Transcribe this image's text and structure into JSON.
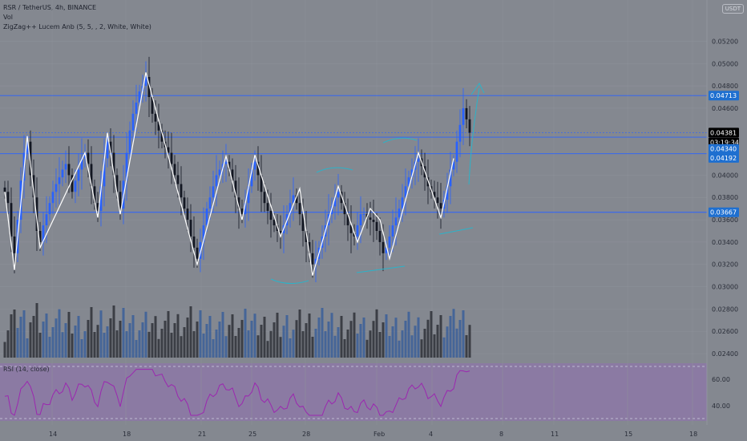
{
  "header": {
    "symbol_line": "RSR / TetherUS, 4h, BINANCE",
    "vol_label": "Vol",
    "indicator_line": "ZigZag++ Lucem Anb (5, 5, , 2, White, White)",
    "currency_badge": "USDT"
  },
  "colors": {
    "background": "#848890",
    "rsi_band": "#8b7aa3",
    "rsi_line": "#9c27b0",
    "bull": "#2962ff",
    "bear": "#131722",
    "level": "#2962ff",
    "zigzag": "#ffffff",
    "grid": "#8e929a",
    "price_label_bg": "#1e6fd0",
    "current_bg": "#000000",
    "projection": "#2bb3c9"
  },
  "price_axis": {
    "ticks": [
      "0.05200",
      "0.05000",
      "0.04800",
      "0.04600",
      "0.04000",
      "0.03800",
      "0.03600",
      "0.03400",
      "0.03200",
      "0.03000",
      "0.02800",
      "0.02600",
      "0.02400"
    ],
    "labels": [
      {
        "text": "0.04713",
        "value": 0.04713,
        "style": "level"
      },
      {
        "text": "0.04381",
        "value": 0.04381,
        "style": "current"
      },
      {
        "text": "03:19:34",
        "value": 0.04293,
        "style": "countdown"
      },
      {
        "text": "0.04340",
        "value": 0.04235,
        "style": "level"
      },
      {
        "text": "0.04192",
        "value": 0.04155,
        "style": "level"
      },
      {
        "text": "0.03667",
        "value": 0.03667,
        "style": "level"
      }
    ]
  },
  "rsi_panel": {
    "label": "RSI (14, close)",
    "ticks": [
      "60.00",
      "40.00"
    ]
  },
  "time_axis": {
    "ticks": [
      "14",
      "18",
      "21",
      "25",
      "28",
      "Feb",
      "4",
      "8",
      "11",
      "15",
      "18"
    ]
  },
  "chart_data": {
    "type": "candlestick",
    "symbol": "RSR / TetherUS",
    "interval": "4h",
    "exchange": "BINANCE",
    "price_range": [
      0.0235,
      0.0539
    ],
    "horizontal_levels": [
      0.04713,
      0.04381,
      0.0434,
      0.04192,
      0.03667
    ],
    "zigzag_pivots": [
      {
        "i": 0,
        "p": 0.0385
      },
      {
        "i": 3,
        "p": 0.0315
      },
      {
        "i": 7,
        "p": 0.0435
      },
      {
        "i": 11,
        "p": 0.0335
      },
      {
        "i": 25,
        "p": 0.042
      },
      {
        "i": 29,
        "p": 0.0362
      },
      {
        "i": 32,
        "p": 0.0438
      },
      {
        "i": 36,
        "p": 0.0365
      },
      {
        "i": 44,
        "p": 0.0492
      },
      {
        "i": 60,
        "p": 0.032
      },
      {
        "i": 69,
        "p": 0.0417
      },
      {
        "i": 74,
        "p": 0.036
      },
      {
        "i": 78,
        "p": 0.0418
      },
      {
        "i": 86,
        "p": 0.0345
      },
      {
        "i": 92,
        "p": 0.0388
      },
      {
        "i": 96,
        "p": 0.031
      },
      {
        "i": 104,
        "p": 0.039
      },
      {
        "i": 110,
        "p": 0.034
      },
      {
        "i": 114,
        "p": 0.037
      },
      {
        "i": 117,
        "p": 0.036
      },
      {
        "i": 120,
        "p": 0.0325
      },
      {
        "i": 129,
        "p": 0.042
      },
      {
        "i": 136,
        "p": 0.0362
      },
      {
        "i": 140,
        "p": 0.0415
      }
    ],
    "close_path": [
      0.0385,
      0.0375,
      0.0345,
      0.033,
      0.036,
      0.0395,
      0.042,
      0.043,
      0.04,
      0.038,
      0.035,
      0.034,
      0.0355,
      0.0365,
      0.0375,
      0.0385,
      0.0392,
      0.0398,
      0.0405,
      0.041,
      0.04,
      0.0385,
      0.0395,
      0.0405,
      0.0415,
      0.042,
      0.041,
      0.039,
      0.0375,
      0.0368,
      0.039,
      0.0415,
      0.043,
      0.042,
      0.04,
      0.0385,
      0.037,
      0.0395,
      0.042,
      0.044,
      0.0455,
      0.0465,
      0.0475,
      0.048,
      0.0488,
      0.047,
      0.0455,
      0.0448,
      0.044,
      0.043,
      0.0425,
      0.042,
      0.041,
      0.04,
      0.0392,
      0.038,
      0.037,
      0.036,
      0.0345,
      0.0335,
      0.0325,
      0.034,
      0.0355,
      0.037,
      0.038,
      0.039,
      0.04,
      0.0405,
      0.041,
      0.0412,
      0.0405,
      0.0395,
      0.038,
      0.037,
      0.0365,
      0.0375,
      0.039,
      0.0405,
      0.0412,
      0.04,
      0.0385,
      0.0375,
      0.0368,
      0.036,
      0.0355,
      0.035,
      0.0348,
      0.0355,
      0.0365,
      0.0375,
      0.0382,
      0.0375,
      0.0365,
      0.035,
      0.034,
      0.033,
      0.032,
      0.0325,
      0.0335,
      0.0345,
      0.0355,
      0.0365,
      0.0372,
      0.038,
      0.0385,
      0.0375,
      0.0365,
      0.0355,
      0.0348,
      0.0345,
      0.0355,
      0.0365,
      0.0365,
      0.0362,
      0.036,
      0.0358,
      0.035,
      0.034,
      0.033,
      0.0335,
      0.0345,
      0.0355,
      0.0362,
      0.037,
      0.038,
      0.039,
      0.0398,
      0.0405,
      0.0412,
      0.0415,
      0.0408,
      0.0398,
      0.039,
      0.0385,
      0.038,
      0.0375,
      0.037,
      0.0378,
      0.039,
      0.0405,
      0.0412,
      0.043,
      0.0445,
      0.046,
      0.045,
      0.0438
    ],
    "rsi_range": [
      28,
      78
    ],
    "rsi_reference_lines": [
      70,
      30
    ]
  }
}
